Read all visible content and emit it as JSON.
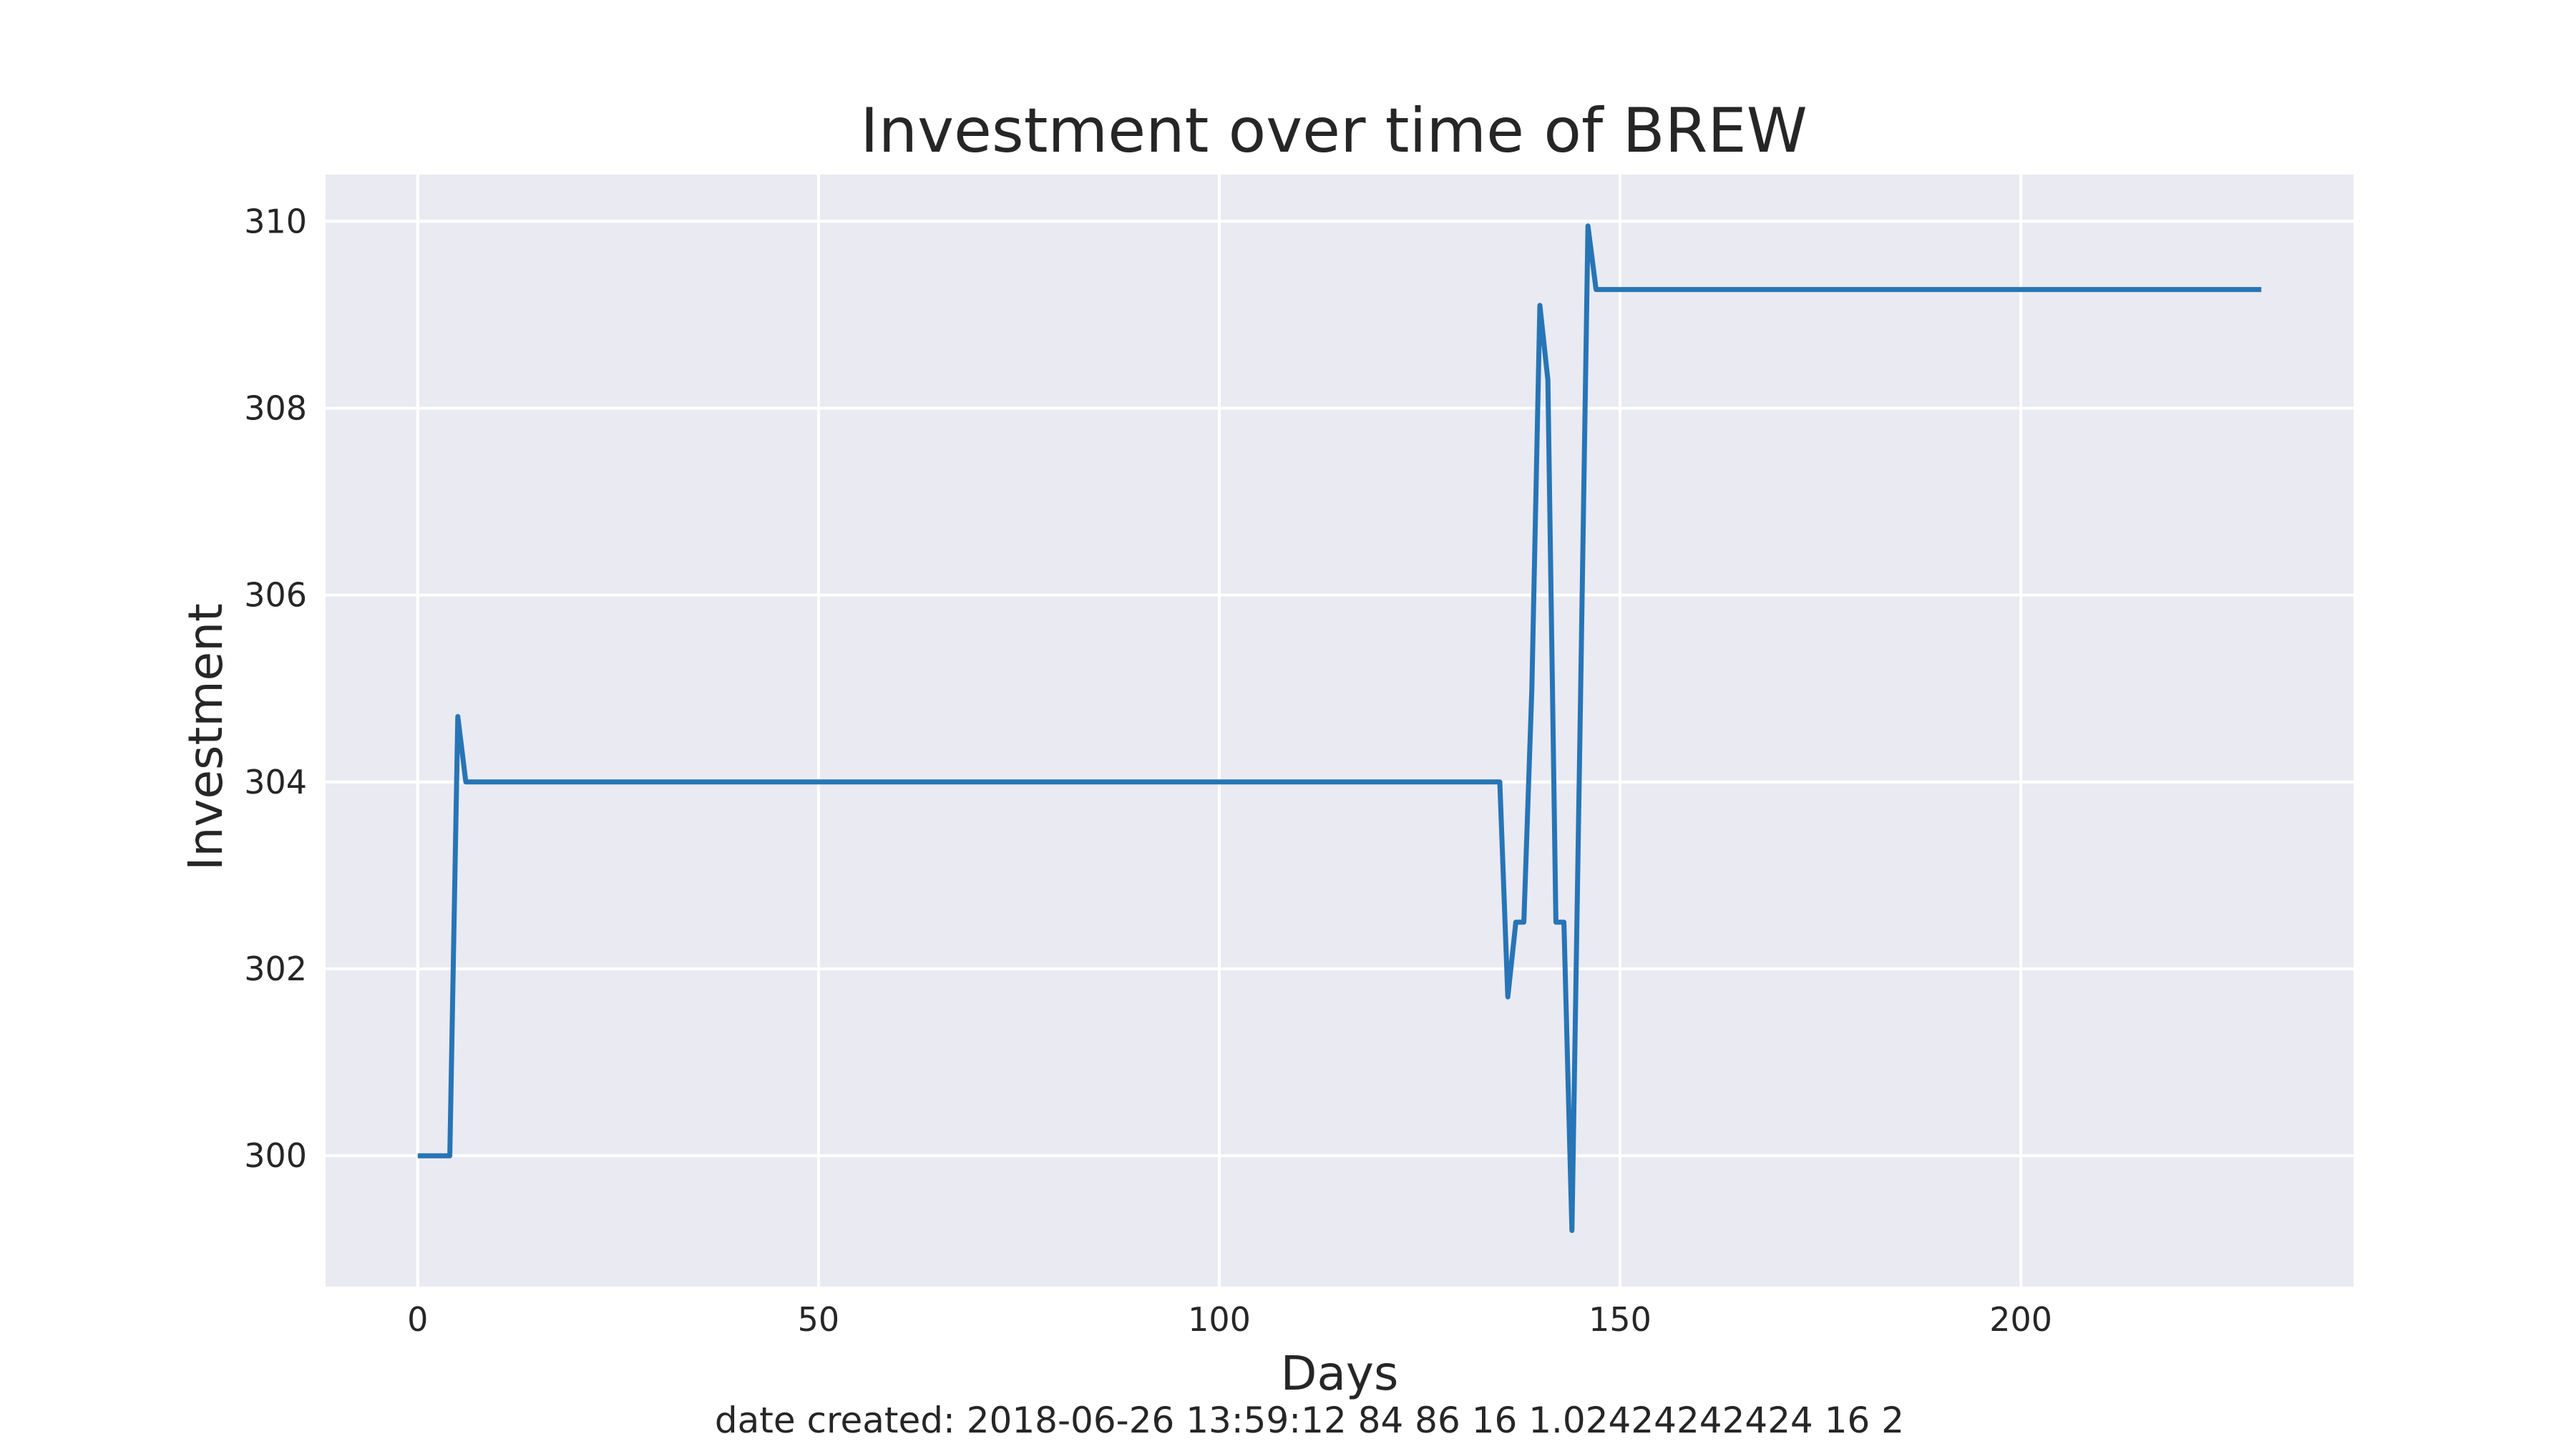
{
  "chart_data": {
    "type": "line",
    "title": "Investment over time of BREW",
    "xlabel": "Days",
    "ylabel": "Investment",
    "xlim": [
      -11.5,
      241.5
    ],
    "ylim": [
      298.6,
      310.5
    ],
    "xticks": [
      0,
      50,
      100,
      150,
      200
    ],
    "yticks": [
      300,
      302,
      304,
      306,
      308,
      310
    ],
    "grid": true,
    "legend": false,
    "colors": {
      "background": "#eaeaf2",
      "grid": "#ffffff",
      "series": "#2775b6"
    },
    "series": [
      {
        "x": [
          0,
          4,
          5,
          6,
          7,
          135,
          136,
          137,
          138,
          139,
          140,
          141,
          142,
          143,
          144,
          145,
          146,
          147,
          230
        ],
        "values": [
          300,
          300,
          304.7,
          304,
          304,
          304,
          301.7,
          302.5,
          302.5,
          305,
          309.1,
          308.3,
          302.5,
          302.5,
          299.2,
          304.5,
          309.95,
          309.27,
          309.27
        ]
      }
    ]
  },
  "footer": "date created: 2018-06-26 13:59:12 84 86 16 1.02424242424 16 2"
}
